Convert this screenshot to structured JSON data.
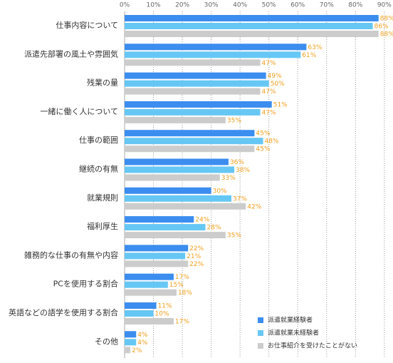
{
  "chart_data": {
    "type": "bar",
    "orientation": "horizontal",
    "categories": [
      "仕事内容について",
      "派遣先部署の風土や雰囲気",
      "残業の量",
      "一緒に働く人について",
      "仕事の範囲",
      "継続の有無",
      "就業規則",
      "福利厚生",
      "雑務的な仕事の有無や内容",
      "PCを使用する割合",
      "英語などの語学を使用する割合",
      "その他"
    ],
    "series": [
      {
        "name": "派遣就業経験者",
        "color": "#3b8def",
        "values": [
          88,
          63,
          49,
          51,
          45,
          36,
          30,
          24,
          22,
          17,
          11,
          4
        ],
        "value_labels": [
          "88%",
          "63%",
          "49%",
          "51%",
          "45%",
          "36%",
          "30%",
          "24%",
          "22%",
          "17%",
          "11%",
          "4%"
        ]
      },
      {
        "name": "派遣就業未経験者",
        "color": "#66c7f4",
        "values": [
          86,
          61,
          50,
          47,
          48,
          38,
          37,
          28,
          21,
          15,
          10,
          4
        ],
        "value_labels": [
          "86%",
          "61%",
          "50%",
          "47%",
          "48%",
          "38%",
          "37%",
          "28%",
          "21%",
          "15%",
          "10%",
          "4%"
        ]
      },
      {
        "name": "お仕事紹介を受けたことがない",
        "color": "#cccccc",
        "values": [
          88,
          47,
          47,
          35,
          45,
          33,
          42,
          35,
          22,
          18,
          17,
          2
        ],
        "value_labels": [
          "88%",
          "47%",
          "47%",
          "35%",
          "45%",
          "33%",
          "42%",
          "35%",
          "22%",
          "18%",
          "17%",
          "2%"
        ]
      }
    ],
    "xlim": [
      0,
      93
    ],
    "xticks": [
      {
        "value": 0,
        "label": "0%"
      },
      {
        "value": 10,
        "label": "10%"
      },
      {
        "value": 20,
        "label": "20%"
      },
      {
        "value": 30,
        "label": "30%"
      },
      {
        "value": 40,
        "label": "40%"
      },
      {
        "value": 50,
        "label": "50%"
      },
      {
        "value": 60,
        "label": "60%"
      },
      {
        "value": 70,
        "label": "70%"
      },
      {
        "value": 80,
        "label": "80%"
      },
      {
        "value": 90,
        "label": "90%"
      }
    ],
    "grid": true,
    "legend": "lower right"
  }
}
